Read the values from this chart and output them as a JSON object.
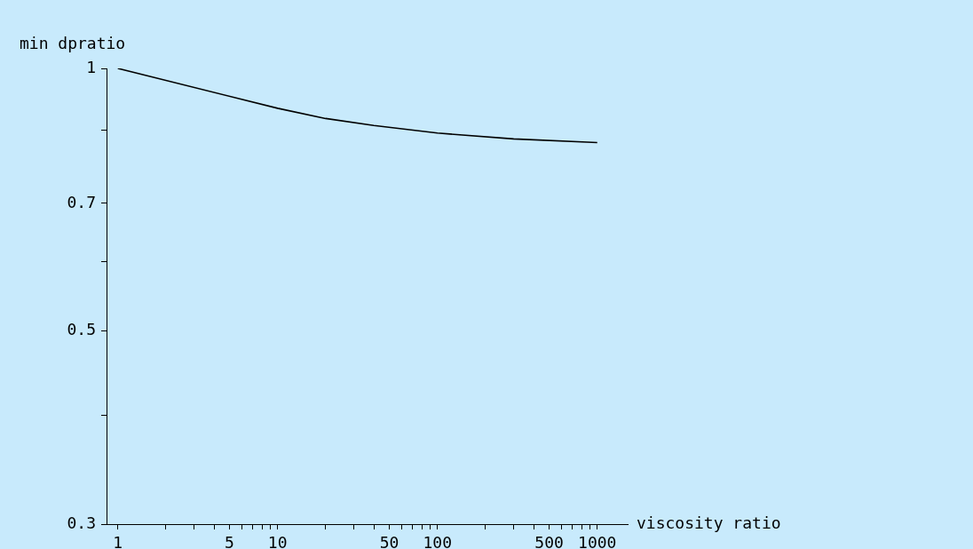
{
  "chart_data": {
    "type": "line",
    "xlabel": "viscosity ratio",
    "ylabel": "min dpratio",
    "log": "xy",
    "grid": false,
    "legend": false,
    "marker": "none",
    "line_style": "solid",
    "x": [
      1,
      10,
      20,
      40,
      100,
      300,
      1000
    ],
    "series": [
      {
        "color": "#000000",
        "values": [
          1,
          0.9,
          0.876,
          0.86,
          0.843,
          0.83,
          0.822
        ]
      }
    ],
    "xlim": [
      0.85,
      1550
    ],
    "ylim": [
      0.3,
      1
    ],
    "xticks": [
      1,
      {
        "value": 2,
        "label": null
      },
      {
        "value": 3,
        "label": null
      },
      {
        "value": 4,
        "label": null
      },
      5,
      {
        "value": 6,
        "label": null
      },
      {
        "value": 7,
        "label": null
      },
      {
        "value": 8,
        "label": null
      },
      {
        "value": 9,
        "label": null
      },
      10,
      {
        "value": 20,
        "label": null
      },
      {
        "value": 30,
        "label": null
      },
      {
        "value": 40,
        "label": null
      },
      50,
      {
        "value": 60,
        "label": null
      },
      {
        "value": 70,
        "label": null
      },
      {
        "value": 80,
        "label": null
      },
      {
        "value": 90,
        "label": null
      },
      100,
      {
        "value": 200,
        "label": null
      },
      {
        "value": 300,
        "label": null
      },
      {
        "value": 400,
        "label": null
      },
      500,
      {
        "value": 600,
        "label": null
      },
      {
        "value": 700,
        "label": null
      },
      {
        "value": 800,
        "label": null
      },
      {
        "value": 900,
        "label": null
      },
      1000
    ],
    "yticks": [
      0.3,
      {
        "value": 0.4,
        "label": null
      },
      0.5,
      {
        "value": 0.6,
        "label": null
      },
      0.7,
      {
        "value": 0.85,
        "label": null
      },
      1
    ]
  }
}
